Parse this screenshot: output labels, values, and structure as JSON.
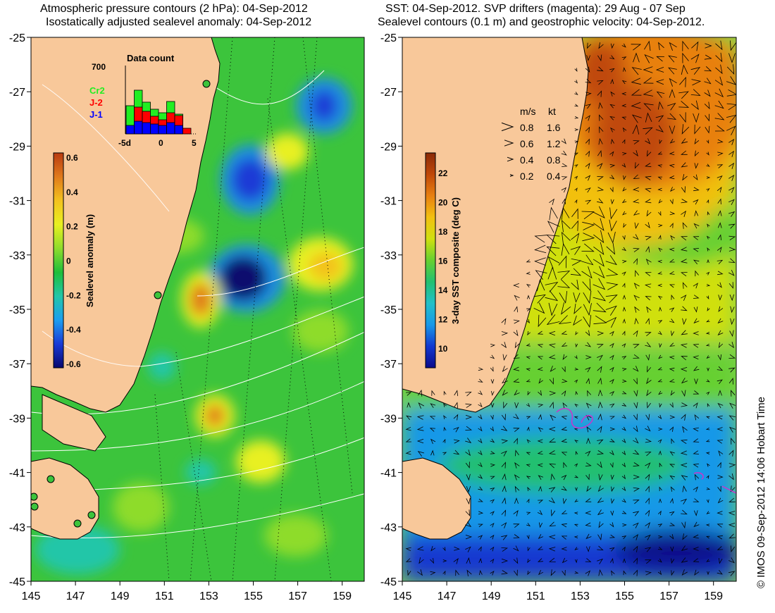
{
  "left_panel": {
    "title_line1": "Atmospheric pressure contours (2 hPa): 04-Sep-2012",
    "title_line2": "Isostatically adjusted sealevel anomaly: 04-Sep-2012",
    "colorbar": {
      "label": "Sealevel anomaly (m)",
      "ticks": [
        "0.6",
        "0.4",
        "0.2",
        "0",
        "-0.2",
        "-0.4",
        "-0.6"
      ],
      "colors": [
        "#08086e",
        "#1a3ad6",
        "#1c9ef0",
        "#22c6a8",
        "#1fbe3a",
        "#8edc2c",
        "#e8f020",
        "#f3c21e",
        "#e07a1c",
        "#b83a10"
      ]
    },
    "data_count": {
      "title": "Data count",
      "ymax": "700",
      "legend": [
        {
          "name": "Cr2",
          "color": "#22ee22"
        },
        {
          "name": "J-2",
          "color": "#ff0000"
        },
        {
          "name": "J-1",
          "color": "#0000ff"
        }
      ],
      "xticks": [
        "-5d",
        "0",
        "5"
      ]
    }
  },
  "right_panel": {
    "title_line1": "SST: 04-Sep-2012. SVP drifters (magenta): 29 Aug - 07 Sep",
    "title_line2": "Sealevel contours (0.1 m) and geostrophic velocity: 04-Sep-2012.",
    "colorbar": {
      "label": "3-day SST composite (deg C)",
      "ticks": [
        "22",
        "20",
        "18",
        "16",
        "14",
        "12",
        "10"
      ],
      "colors": [
        "#0a0a8a",
        "#1238d0",
        "#1898e8",
        "#22c0c8",
        "#22c070",
        "#66d030",
        "#d0e010",
        "#f2c010",
        "#e88010",
        "#c04808",
        "#8a2a08"
      ]
    },
    "velocity_key": {
      "header_ms": "m/s",
      "header_kt": "kt",
      "rows": [
        {
          "ms": "0.8",
          "kt": "1.6"
        },
        {
          "ms": "0.6",
          "kt": "1.2"
        },
        {
          "ms": "0.4",
          "kt": "0.8"
        },
        {
          "ms": "0.2",
          "kt": "0.4"
        }
      ]
    }
  },
  "axes": {
    "lat_labels": [
      "-25",
      "-27",
      "-29",
      "-31",
      "-33",
      "-35",
      "-37",
      "-39",
      "-41",
      "-43",
      "-45"
    ],
    "lon_labels": [
      "145",
      "147",
      "149",
      "151",
      "153",
      "155",
      "157",
      "159"
    ]
  },
  "colors": {
    "land": "#f8c89a",
    "ocean_base_left": "#3cc43c",
    "ocean_base_right": "#7cd050"
  },
  "credit": "© IMOS 09-Sep-2012 14:06 Hobart Time"
}
